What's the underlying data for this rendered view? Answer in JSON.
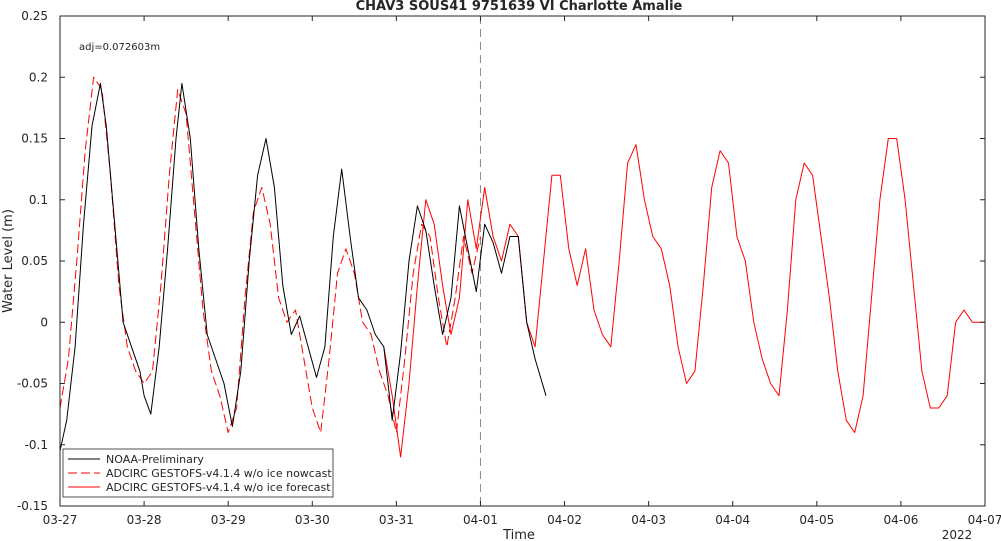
{
  "chart_data": {
    "type": "line",
    "title": "CHAV3 SOUS41 9751639 VI Charlotte Amalie",
    "xlabel": "Time",
    "ylabel": "Water Level (m)",
    "year_label": "2022",
    "annotation": "adj=0.072603m",
    "xlim": [
      0,
      11
    ],
    "ylim": [
      -0.15,
      0.25
    ],
    "x_ticks": [
      0,
      1,
      2,
      3,
      4,
      5,
      6,
      7,
      8,
      9,
      10,
      11
    ],
    "x_tick_labels": [
      "03-27",
      "03-28",
      "03-29",
      "03-30",
      "03-31",
      "04-01",
      "04-02",
      "04-03",
      "04-04",
      "04-05",
      "04-06",
      "04-07"
    ],
    "y_ticks": [
      -0.15,
      -0.1,
      -0.05,
      0,
      0.05,
      0.1,
      0.15,
      0.2,
      0.25
    ],
    "y_tick_labels": [
      "-0.15",
      "-0.1",
      "-0.05",
      "0",
      "0.05",
      "0.1",
      "0.15",
      "0.2",
      "0.25"
    ],
    "nowcast_forecast_boundary_x": 5,
    "legend_position": "bottom-left",
    "grid": false,
    "series": [
      {
        "name": "NOAA-Preliminary",
        "color": "#000000",
        "style": "solid",
        "x": [
          0.0,
          0.08,
          0.18,
          0.28,
          0.38,
          0.48,
          0.55,
          0.65,
          0.75,
          0.85,
          0.95,
          1.0,
          1.08,
          1.18,
          1.28,
          1.38,
          1.45,
          1.55,
          1.65,
          1.75,
          1.85,
          1.95,
          2.05,
          2.15,
          2.25,
          2.35,
          2.45,
          2.55,
          2.65,
          2.75,
          2.85,
          2.95,
          3.05,
          3.15,
          3.25,
          3.35,
          3.45,
          3.55,
          3.65,
          3.75,
          3.85,
          3.95,
          4.05,
          4.15,
          4.25,
          4.35,
          4.45,
          4.55,
          4.65,
          4.75,
          4.85,
          4.95,
          5.05,
          5.15,
          5.25,
          5.35,
          5.45,
          5.55,
          5.65,
          5.78
        ],
        "y": [
          -0.105,
          -0.08,
          -0.02,
          0.08,
          0.16,
          0.195,
          0.16,
          0.08,
          0.0,
          -0.02,
          -0.04,
          -0.06,
          -0.075,
          -0.02,
          0.06,
          0.15,
          0.195,
          0.15,
          0.06,
          -0.01,
          -0.03,
          -0.05,
          -0.085,
          -0.04,
          0.05,
          0.12,
          0.15,
          0.11,
          0.03,
          -0.01,
          0.005,
          -0.02,
          -0.045,
          -0.02,
          0.07,
          0.125,
          0.07,
          0.02,
          0.01,
          -0.01,
          -0.02,
          -0.08,
          -0.025,
          0.05,
          0.095,
          0.075,
          0.03,
          -0.01,
          0.02,
          0.095,
          0.06,
          0.025,
          0.08,
          0.065,
          0.04,
          0.07,
          0.07,
          0.0,
          -0.03,
          -0.06
        ]
      },
      {
        "name": "ADCIRC GESTOFS-v4.1.4 w/o ice nowcast",
        "color": "#ff0000",
        "style": "dashed",
        "x": [
          0.0,
          0.1,
          0.2,
          0.3,
          0.4,
          0.5,
          0.6,
          0.7,
          0.8,
          0.9,
          1.0,
          1.1,
          1.2,
          1.3,
          1.4,
          1.5,
          1.6,
          1.7,
          1.8,
          1.9,
          2.0,
          2.1,
          2.2,
          2.3,
          2.4,
          2.5,
          2.6,
          2.7,
          2.8,
          2.9,
          3.0,
          3.1,
          3.2,
          3.3,
          3.4,
          3.5,
          3.6,
          3.7,
          3.8,
          3.9,
          4.0,
          4.1,
          4.2,
          4.3,
          4.4,
          4.5,
          4.6,
          4.7,
          4.8,
          4.9,
          5.0
        ],
        "y": [
          -0.07,
          -0.03,
          0.05,
          0.14,
          0.2,
          0.19,
          0.12,
          0.03,
          -0.02,
          -0.04,
          -0.05,
          -0.04,
          0.03,
          0.12,
          0.19,
          0.17,
          0.09,
          0.01,
          -0.04,
          -0.06,
          -0.09,
          -0.07,
          0.02,
          0.09,
          0.11,
          0.08,
          0.02,
          0.0,
          0.01,
          -0.03,
          -0.07,
          -0.09,
          -0.03,
          0.04,
          0.06,
          0.04,
          0.0,
          -0.01,
          -0.04,
          -0.06,
          -0.09,
          -0.03,
          0.04,
          0.08,
          0.07,
          0.02,
          -0.02,
          0.02,
          0.07,
          0.04,
          0.07
        ]
      },
      {
        "name": "ADCIRC GESTOFS-v4.1.4 w/o ice forecast",
        "color": "#ff0000",
        "style": "solid",
        "x": [
          3.85,
          3.95,
          4.05,
          4.15,
          4.25,
          4.35,
          4.45,
          4.55,
          4.65,
          4.75,
          4.85,
          4.95,
          5.05,
          5.15,
          5.25,
          5.35,
          5.45,
          5.55,
          5.65,
          5.75,
          5.85,
          5.95,
          6.05,
          6.15,
          6.25,
          6.35,
          6.45,
          6.55,
          6.65,
          6.75,
          6.85,
          6.95,
          7.05,
          7.15,
          7.25,
          7.35,
          7.45,
          7.55,
          7.65,
          7.75,
          7.85,
          7.95,
          8.05,
          8.15,
          8.25,
          8.35,
          8.45,
          8.55,
          8.65,
          8.75,
          8.85,
          8.95,
          9.05,
          9.15,
          9.25,
          9.35,
          9.45,
          9.55,
          9.65,
          9.75,
          9.85,
          9.95,
          10.05,
          10.15,
          10.25,
          10.35,
          10.45,
          10.55,
          10.65,
          10.75,
          10.85,
          10.95,
          11.0
        ],
        "y": [
          -0.02,
          -0.06,
          -0.11,
          -0.05,
          0.03,
          0.1,
          0.08,
          0.03,
          -0.01,
          0.02,
          0.1,
          0.06,
          0.11,
          0.07,
          0.05,
          0.08,
          0.07,
          0.0,
          -0.02,
          0.05,
          0.12,
          0.12,
          0.06,
          0.03,
          0.06,
          0.01,
          -0.01,
          -0.02,
          0.05,
          0.13,
          0.145,
          0.1,
          0.07,
          0.06,
          0.03,
          -0.02,
          -0.05,
          -0.04,
          0.03,
          0.11,
          0.14,
          0.13,
          0.07,
          0.05,
          0.0,
          -0.03,
          -0.05,
          -0.06,
          0.01,
          0.1,
          0.13,
          0.12,
          0.07,
          0.02,
          -0.04,
          -0.08,
          -0.09,
          -0.06,
          0.02,
          0.1,
          0.15,
          0.15,
          0.1,
          0.03,
          -0.04,
          -0.07,
          -0.07,
          -0.06,
          0.0,
          0.01,
          0.0,
          0.0,
          0.0
        ]
      }
    ]
  }
}
